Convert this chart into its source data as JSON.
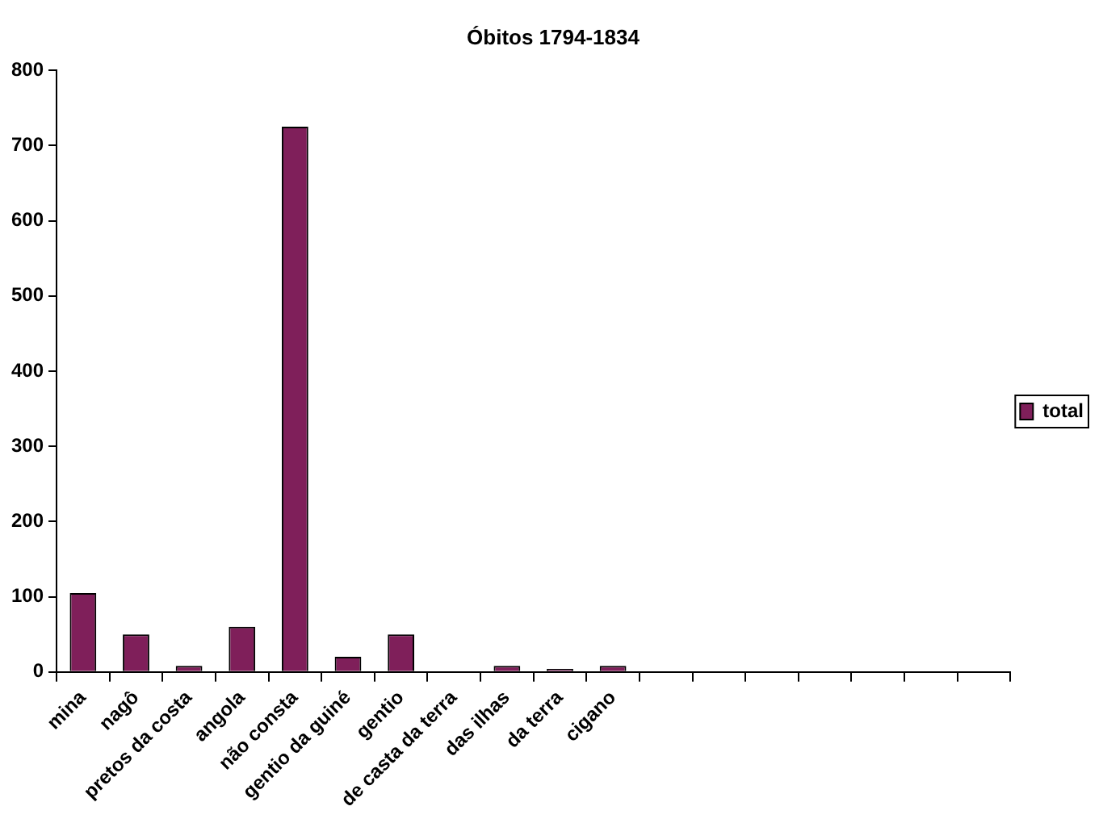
{
  "chart_data": {
    "type": "bar",
    "title": "Óbitos 1794-1834",
    "categories": [
      "mina",
      "nagô",
      "pretos da costa",
      "angola",
      "não consta",
      "gentio da guiné",
      "gentio",
      "de casta da terra",
      "das ilhas",
      "da terra",
      "cigano",
      null,
      null,
      null,
      null,
      null,
      null,
      null
    ],
    "series": [
      {
        "name": "total",
        "color": "#7f1f5a",
        "values": [
          105,
          50,
          8,
          60,
          725,
          20,
          50,
          0,
          8,
          4,
          8,
          null,
          null,
          null,
          null,
          null,
          null,
          null
        ]
      }
    ],
    "ylim": [
      0,
      800
    ],
    "yticks": [
      0,
      100,
      200,
      300,
      400,
      500,
      600,
      700,
      800
    ],
    "grid": false,
    "legend": "right"
  }
}
